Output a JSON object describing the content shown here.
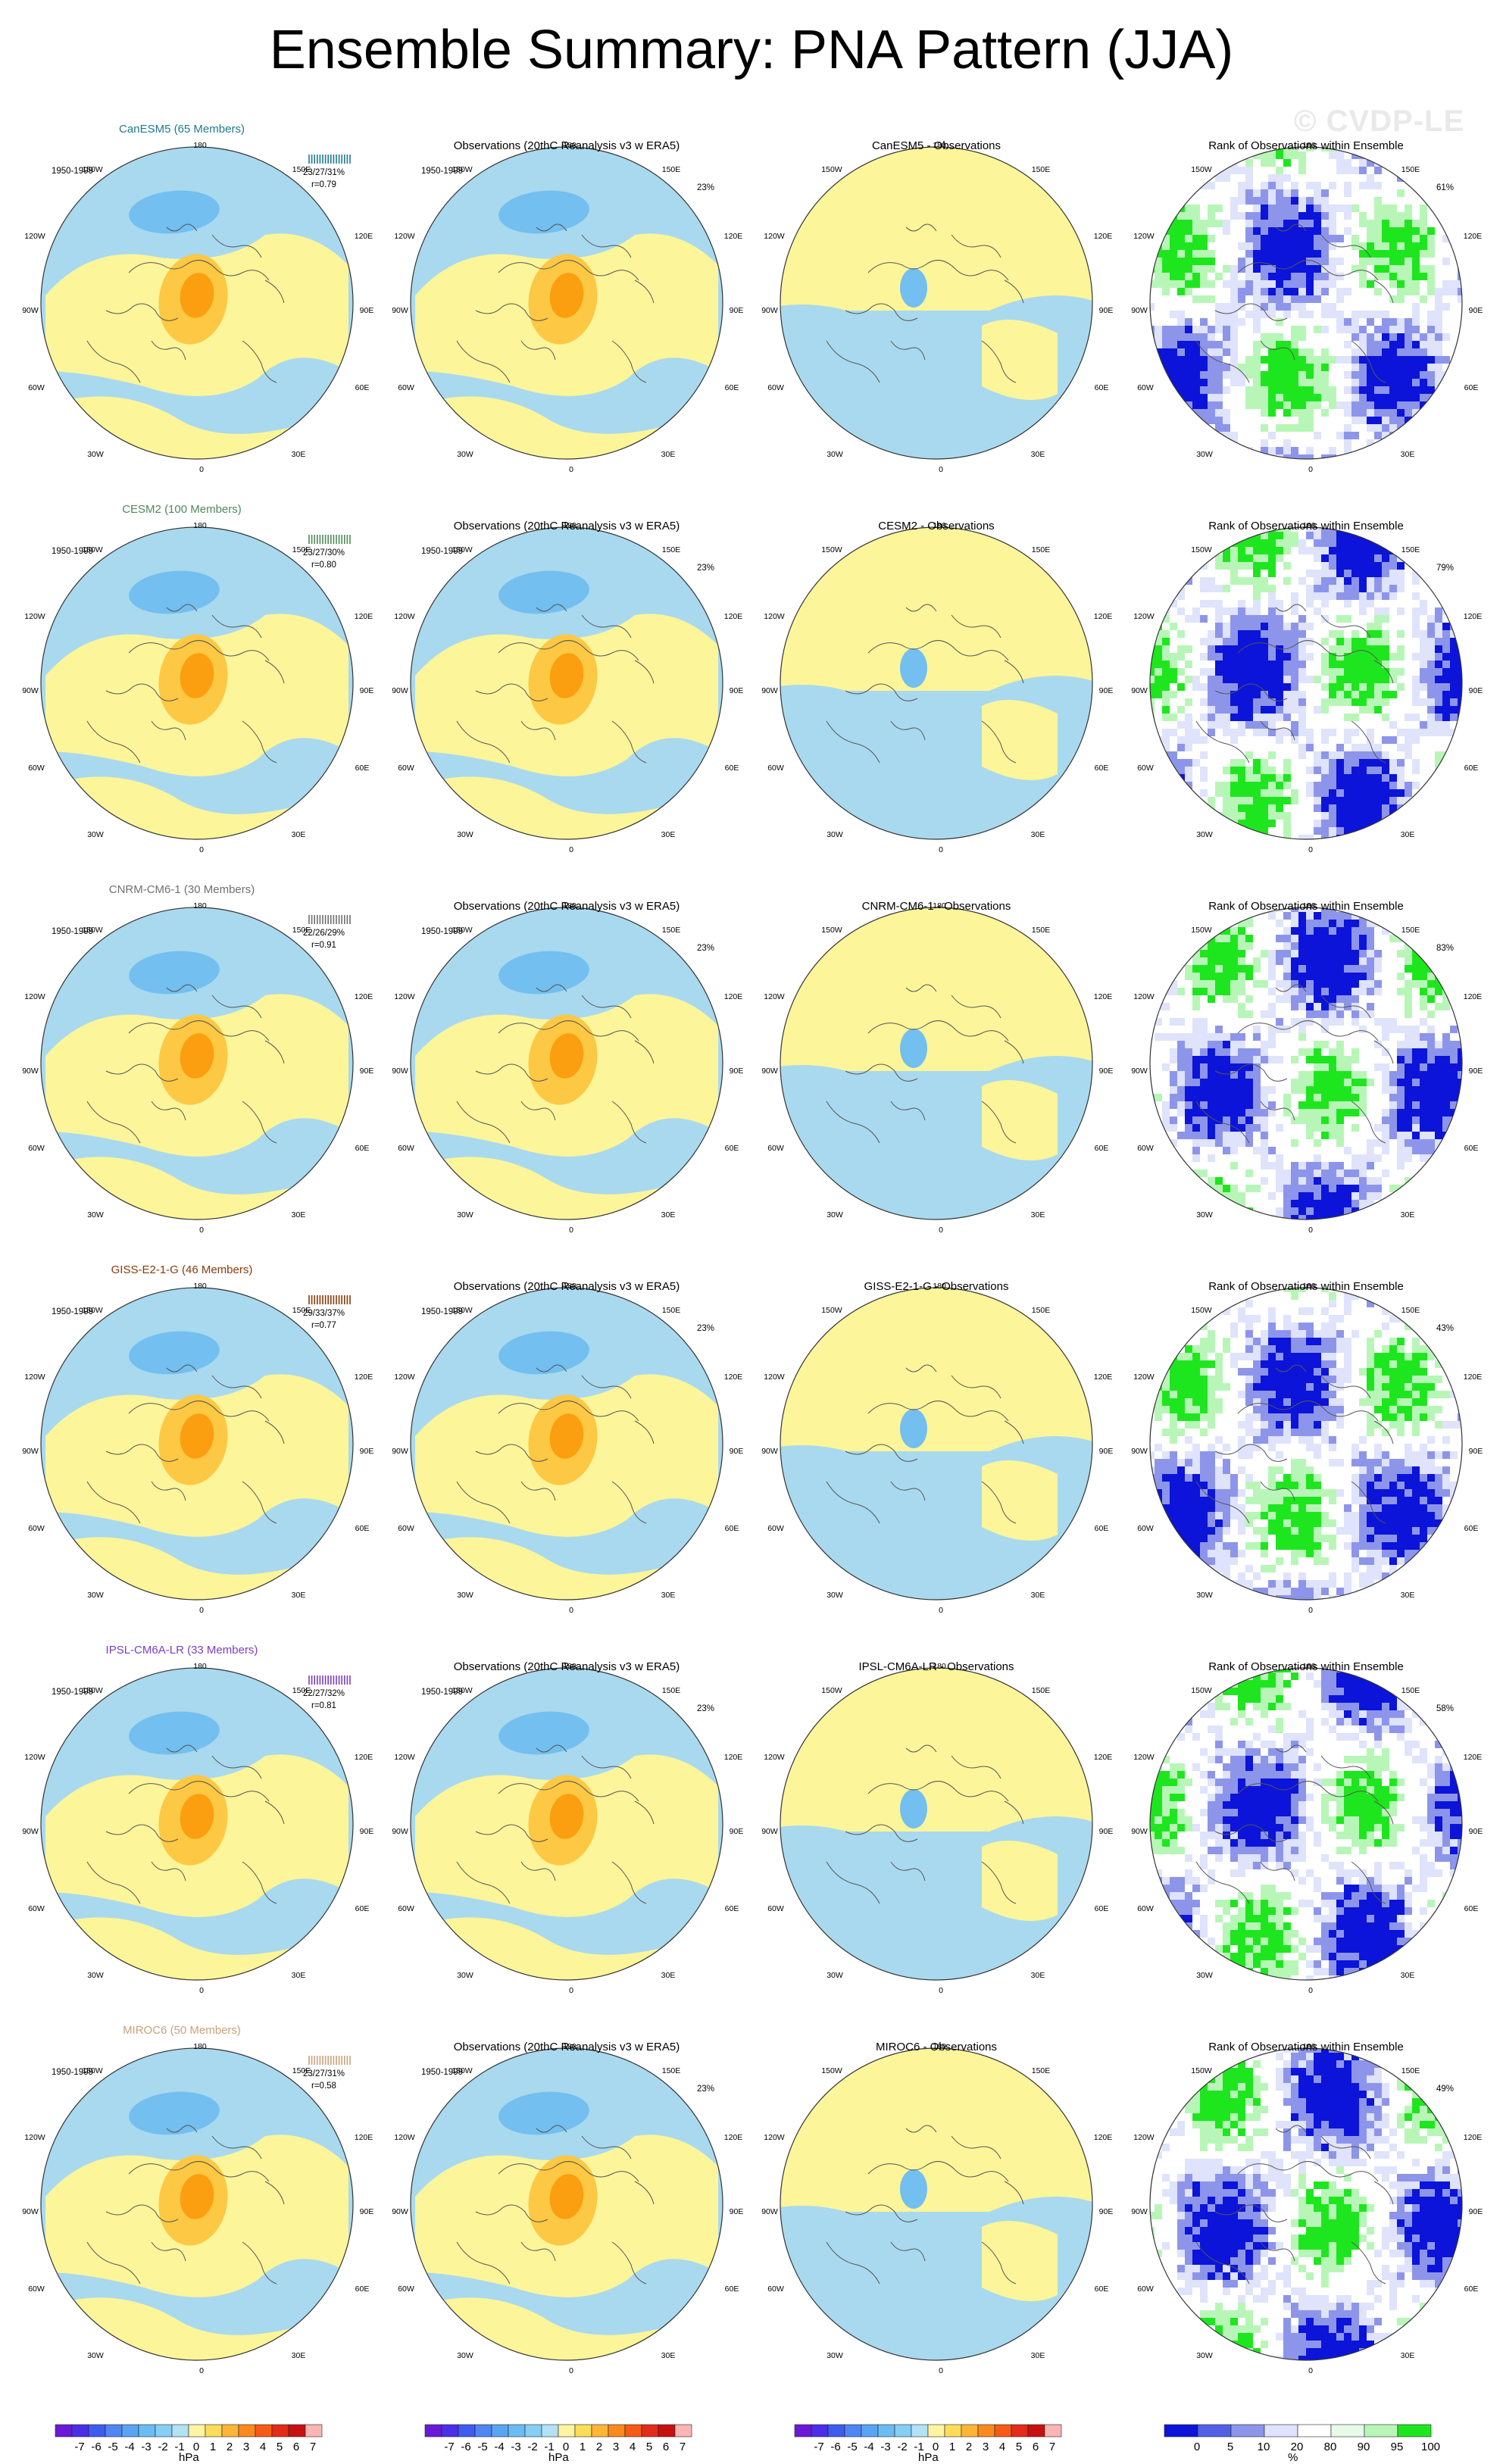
{
  "title": "Ensemble Summary: PNA Pattern (JJA)",
  "watermark": "© CVDP-LE",
  "period": "1950-1999",
  "lon_labels": {
    "top": "180",
    "bottom": "0",
    "upper_left": "150W",
    "upper_right": "150E",
    "mid_left_up": "120W",
    "mid_right_up": "120E",
    "left": "90W",
    "right": "90E",
    "mid_left_low": "60W",
    "mid_right_low": "60E",
    "lower_left": "30W",
    "lower_right": "30E"
  },
  "colors": {
    "blue": "#a9d9ee",
    "yellow": "#fdf59a",
    "orange1": "#fdc843",
    "orange2": "#fb9e10",
    "blue2": "#72bff0",
    "rank_blue": "#0b14d8",
    "rank_mid": "#8d95ea",
    "rank_light": "#dfe3fb",
    "rank_green": "#1ee61e",
    "rank_lgreen": "#b8f6b8"
  },
  "rows": [
    {
      "model_title": "CanESM5 (65 Members)",
      "model_color": "#1f7a8c",
      "stats": "23/27/31%",
      "r": "r=0.79",
      "obs_title": "Observations (20thC Reanalysis v3 w ERA5)",
      "obs_pct": "23%",
      "diff_title": "CanESM5 - Observations",
      "rank_title": "Rank of Observations within Ensemble",
      "rank_pct": "61%"
    },
    {
      "model_title": "CESM2 (100 Members)",
      "model_color": "#4e8a5a",
      "stats": "23/27/30%",
      "r": "r=0.80",
      "obs_title": "Observations (20thC Reanalysis v3 w ERA5)",
      "obs_pct": "23%",
      "diff_title": "CESM2 - Observations",
      "rank_title": "Rank of Observations within Ensemble",
      "rank_pct": "79%"
    },
    {
      "model_title": "CNRM-CM6-1 (30 Members)",
      "model_color": "#707070",
      "stats": "22/26/29%",
      "r": "r=0.91",
      "obs_title": "Observations (20thC Reanalysis v3 w ERA5)",
      "obs_pct": "23%",
      "diff_title": "CNRM-CM6-1 - Observations",
      "rank_title": "Rank of Observations within Ensemble",
      "rank_pct": "83%"
    },
    {
      "model_title": "GISS-E2-1-G (46 Members)",
      "model_color": "#8a3a0a",
      "stats": "29/33/37%",
      "r": "r=0.77",
      "obs_title": "Observations (20thC Reanalysis v3 w ERA5)",
      "obs_pct": "23%",
      "diff_title": "GISS-E2-1-G - Observations",
      "rank_title": "Rank of Observations within Ensemble",
      "rank_pct": "43%"
    },
    {
      "model_title": "IPSL-CM6A-LR (33 Members)",
      "model_color": "#7b3fc4",
      "stats": "22/27/32%",
      "r": "r=0.81",
      "obs_title": "Observations (20thC Reanalysis v3 w ERA5)",
      "obs_pct": "23%",
      "diff_title": "IPSL-CM6A-LR - Observations",
      "rank_title": "Rank of Observations within Ensemble",
      "rank_pct": "58%"
    },
    {
      "model_title": "MIROC6 (50 Members)",
      "model_color": "#c9a27a",
      "stats": "23/27/31%",
      "r": "r=0.58",
      "obs_title": "Observations (20thC Reanalysis v3 w ERA5)",
      "obs_pct": "23%",
      "diff_title": "MIROC6 - Observations",
      "rank_title": "Rank of Observations within Ensemble",
      "rank_pct": "49%"
    }
  ],
  "colorbar_hpa": {
    "ticks": [
      "-7",
      "-6",
      "-5",
      "-4",
      "-3",
      "-2",
      "-1",
      "0",
      "1",
      "2",
      "3",
      "4",
      "5",
      "6",
      "7"
    ],
    "unit": "hPa",
    "colors": [
      "#6a1ad6",
      "#4b2ee8",
      "#3f5cf0",
      "#4f86f2",
      "#5aa4f4",
      "#6bbcf3",
      "#86cef4",
      "#b3e1f5",
      "#fff5a0",
      "#fddc5a",
      "#fdb536",
      "#fb8a1c",
      "#f75a18",
      "#e42a18",
      "#c81010",
      "#fbb5b5"
    ]
  },
  "colorbar_rank": {
    "ticks": [
      "0",
      "5",
      "10",
      "20",
      "80",
      "90",
      "95",
      "100"
    ],
    "unit": "%",
    "colors": [
      "#0b14d8",
      "#5360e6",
      "#8d95ea",
      "#dfe3fb",
      "#ffffff",
      "#e8fbe8",
      "#b8f6b8",
      "#1ee61e"
    ]
  }
}
